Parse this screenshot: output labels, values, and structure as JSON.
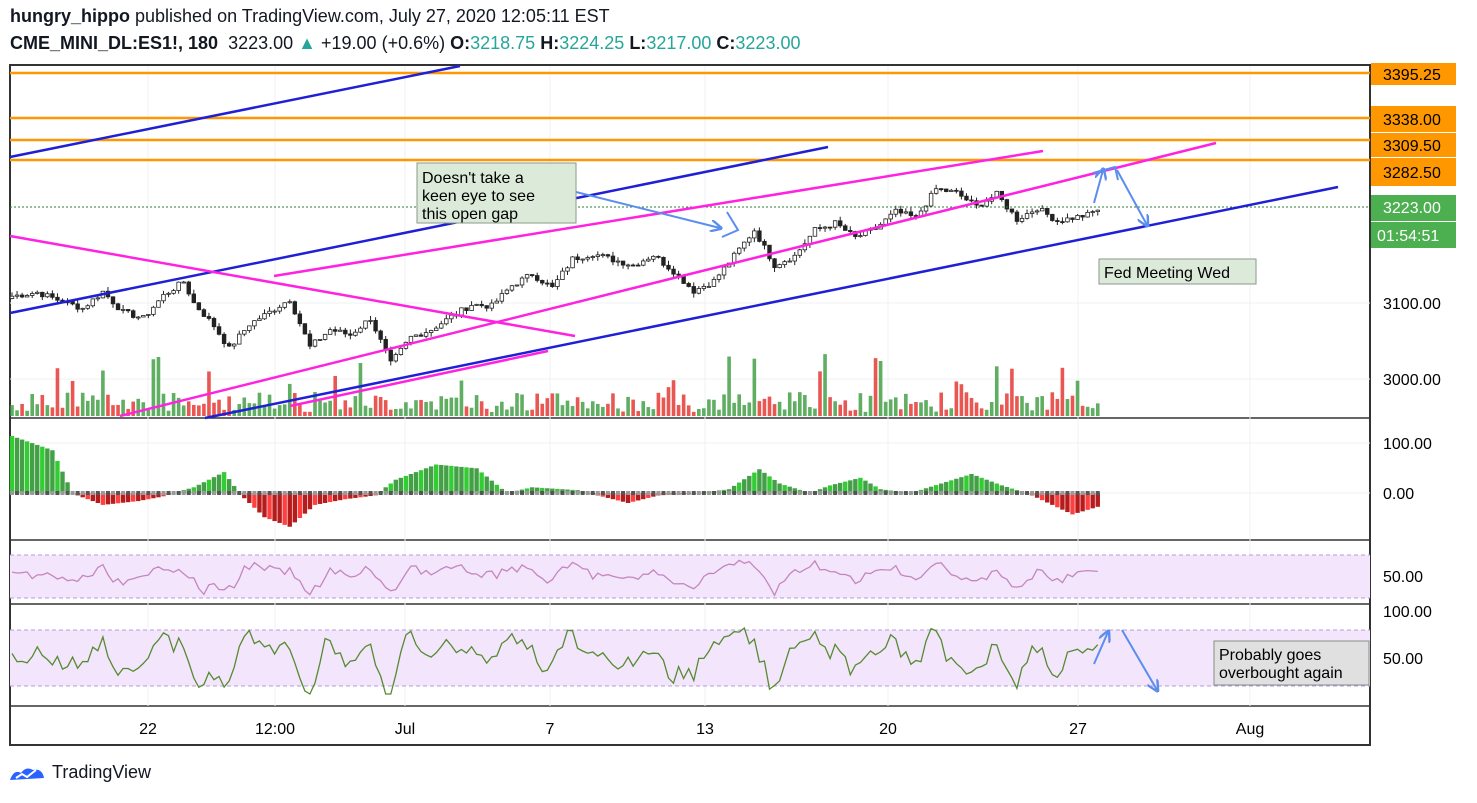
{
  "header": {
    "author": "hungry_hippo",
    "published": " published on TradingView.com, July 27, 2020 12:05:11 EST",
    "symbol": "CME_MINI_DL:ES1!, 180",
    "last": "3223.00",
    "change": "+19.00 (+0.6%)",
    "o_label": "O:",
    "o": "3218.75",
    "h_label": "H:",
    "h": "3224.25",
    "l_label": "L:",
    "l": "3217.00",
    "c_label": "C:",
    "c": "3223.00"
  },
  "footer": {
    "brand": "TradingView"
  },
  "colors": {
    "orange": "#ff9800",
    "blue": "#1f1fd6",
    "magenta": "#ff22e0",
    "up": "#2e7d32",
    "down": "#d32f2f",
    "arrow": "#5b8def",
    "badge_orange": "#ff9800",
    "badge_green": "#4caf50"
  },
  "chart_data": {
    "type": "candlestick",
    "price_axis_ticks": [
      "3100.00",
      "3000.00"
    ],
    "price_levels": [
      {
        "label": "3395.25"
      },
      {
        "label": "3338.00"
      },
      {
        "label": "3309.50"
      },
      {
        "label": "3282.50"
      }
    ],
    "last_price_label": "3223.00",
    "countdown_label": "01:54:51",
    "x_ticks": [
      "22",
      "12:00",
      "Jul",
      "7",
      "13",
      "20",
      "27",
      "Aug"
    ],
    "osc_ticks": [
      "100.00",
      "0.00"
    ],
    "rsi_ticks": [
      "50.00"
    ],
    "stoch_ticks": [
      "100.00",
      "50.00"
    ],
    "close_path": [
      [
        0,
        3109
      ],
      [
        5,
        3114
      ],
      [
        10,
        3102
      ],
      [
        14,
        3093
      ],
      [
        18,
        3115
      ],
      [
        22,
        3088
      ],
      [
        26,
        3080
      ],
      [
        30,
        3110
      ],
      [
        34,
        3128
      ],
      [
        36,
        3100
      ],
      [
        40,
        3070
      ],
      [
        43,
        3040
      ],
      [
        47,
        3072
      ],
      [
        51,
        3088
      ],
      [
        55,
        3105
      ],
      [
        59,
        3042
      ],
      [
        63,
        3065
      ],
      [
        67,
        3058
      ],
      [
        71,
        3080
      ],
      [
        75,
        3020
      ],
      [
        79,
        3055
      ],
      [
        83,
        3065
      ],
      [
        87,
        3082
      ],
      [
        91,
        3098
      ],
      [
        95,
        3096
      ],
      [
        99,
        3123
      ],
      [
        103,
        3138
      ],
      [
        107,
        3120
      ],
      [
        111,
        3158
      ],
      [
        115,
        3165
      ],
      [
        119,
        3157
      ],
      [
        123,
        3150
      ],
      [
        127,
        3163
      ],
      [
        131,
        3142
      ],
      [
        135,
        3116
      ],
      [
        139,
        3129
      ],
      [
        143,
        3162
      ],
      [
        147,
        3196
      ],
      [
        151,
        3150
      ],
      [
        155,
        3162
      ],
      [
        159,
        3196
      ],
      [
        163,
        3205
      ],
      [
        167,
        3186
      ],
      [
        171,
        3198
      ],
      [
        175,
        3220
      ],
      [
        179,
        3212
      ],
      [
        183,
        3250
      ],
      [
        187,
        3245
      ],
      [
        191,
        3227
      ],
      [
        195,
        3243
      ],
      [
        199,
        3210
      ],
      [
        203,
        3225
      ],
      [
        207,
        3208
      ],
      [
        210,
        3212
      ],
      [
        213,
        3216
      ],
      [
        215,
        3223
      ]
    ],
    "annotations": [
      {
        "lines": [
          "Doesn't take a",
          "keen eye to see",
          "this open gap"
        ]
      },
      {
        "lines": [
          "Fed Meeting Wed"
        ]
      },
      {
        "lines": [
          "Probably goes",
          "overbought again"
        ]
      }
    ]
  }
}
